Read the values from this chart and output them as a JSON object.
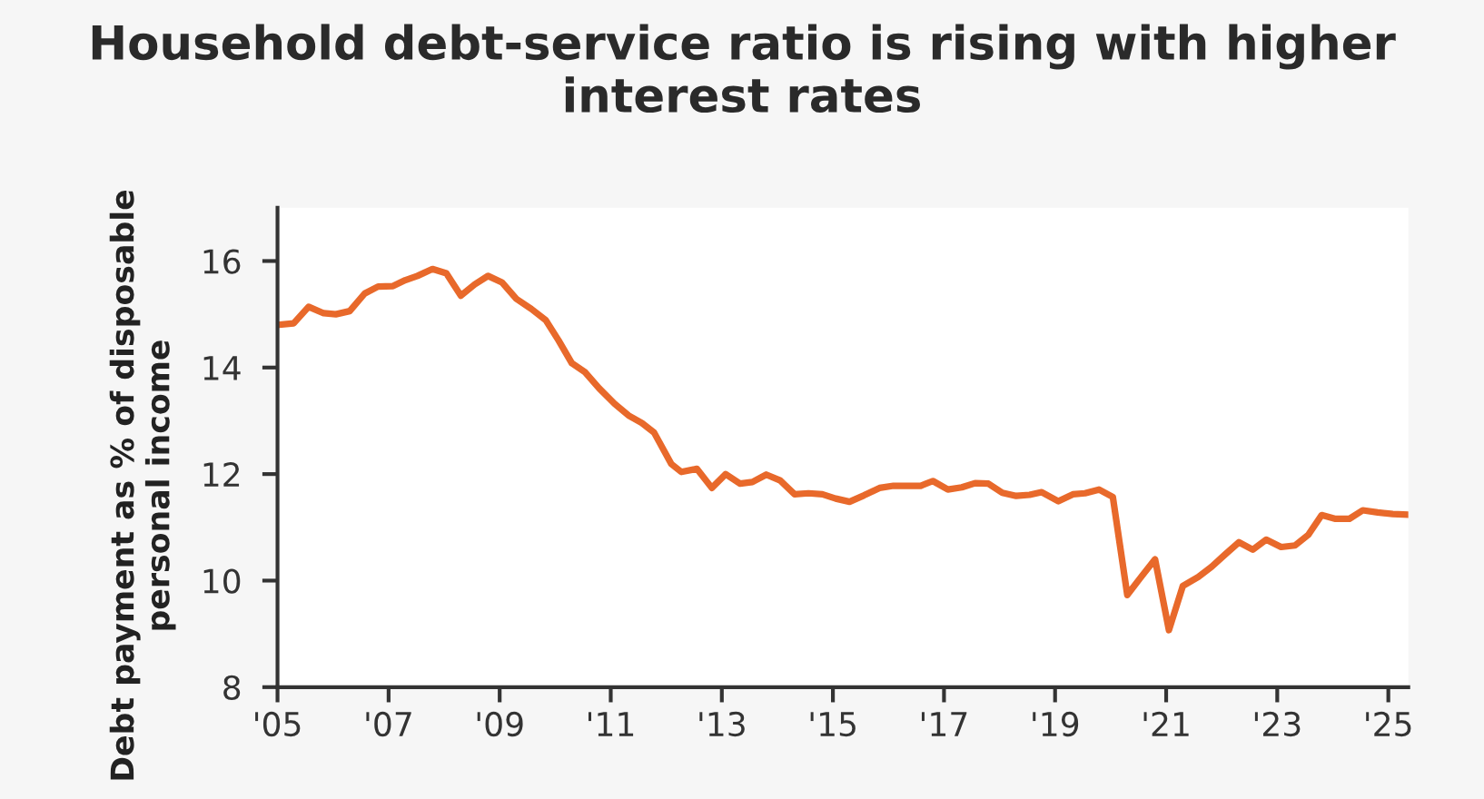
{
  "chart_data": {
    "type": "line",
    "title": "Household debt-service ratio is rising with higher interest rates",
    "ylabel": "Debt payment as % of disposable personal income",
    "x": [
      2005.0,
      2005.29,
      2005.56,
      2005.83,
      2006.05,
      2006.3,
      2006.57,
      2006.81,
      2007.08,
      2007.3,
      2007.52,
      2007.79,
      2008.04,
      2008.3,
      2008.55,
      2008.79,
      2009.04,
      2009.3,
      2009.57,
      2009.83,
      2010.06,
      2010.3,
      2010.54,
      2010.79,
      2011.07,
      2011.32,
      2011.56,
      2011.78,
      2012.09,
      2012.27,
      2012.55,
      2012.82,
      2013.07,
      2013.33,
      2013.55,
      2013.8,
      2014.05,
      2014.31,
      2014.56,
      2014.81,
      2015.05,
      2015.3,
      2015.56,
      2015.84,
      2016.09,
      2016.34,
      2016.58,
      2016.8,
      2017.07,
      2017.32,
      2017.56,
      2017.8,
      2018.05,
      2018.3,
      2018.54,
      2018.76,
      2019.06,
      2019.32,
      2019.54,
      2019.79,
      2020.04,
      2020.3,
      2020.55,
      2020.8,
      2021.05,
      2021.3,
      2021.58,
      2021.82,
      2022.06,
      2022.31,
      2022.56,
      2022.8,
      2023.07,
      2023.32,
      2023.56,
      2023.8,
      2024.05,
      2024.3,
      2024.54,
      2024.81,
      2025.08,
      2025.32
    ],
    "series": [
      {
        "color": "#e8692b",
        "values": [
          14.8,
          14.83,
          15.14,
          15.02,
          15.0,
          15.06,
          15.39,
          15.52,
          15.53,
          15.64,
          15.72,
          15.85,
          15.77,
          15.35,
          15.56,
          15.72,
          15.6,
          15.29,
          15.1,
          14.89,
          14.51,
          14.08,
          13.91,
          13.61,
          13.32,
          13.1,
          12.96,
          12.78,
          12.19,
          12.04,
          12.1,
          11.74,
          12.0,
          11.82,
          11.85,
          11.99,
          11.88,
          11.62,
          11.64,
          11.62,
          11.54,
          11.48,
          11.6,
          11.74,
          11.78,
          11.78,
          11.78,
          11.87,
          11.71,
          11.75,
          11.83,
          11.82,
          11.65,
          11.59,
          11.61,
          11.66,
          11.49,
          11.62,
          11.64,
          11.71,
          11.57,
          9.73,
          10.07,
          10.4,
          9.07,
          9.9,
          10.07,
          10.26,
          10.49,
          10.72,
          10.58,
          10.77,
          10.63,
          10.66,
          10.86,
          11.23,
          11.16,
          11.16,
          11.32,
          11.28,
          11.25,
          11.24
        ]
      }
    ],
    "xlim": [
      2005.0,
      2025.36
    ],
    "ylim": [
      8,
      17
    ],
    "xticks": [
      {
        "value": 2005,
        "label": "'05"
      },
      {
        "value": 2007,
        "label": "'07"
      },
      {
        "value": 2009,
        "label": "'09"
      },
      {
        "value": 2011,
        "label": "'11"
      },
      {
        "value": 2013,
        "label": "'13"
      },
      {
        "value": 2015,
        "label": "'15"
      },
      {
        "value": 2017,
        "label": "'17"
      },
      {
        "value": 2019,
        "label": "'19"
      },
      {
        "value": 2021,
        "label": "'21"
      },
      {
        "value": 2023,
        "label": "'23"
      },
      {
        "value": 2025,
        "label": "'25"
      }
    ],
    "yticks": [
      8,
      10,
      12,
      14,
      16
    ],
    "grid": false,
    "legend": false
  }
}
